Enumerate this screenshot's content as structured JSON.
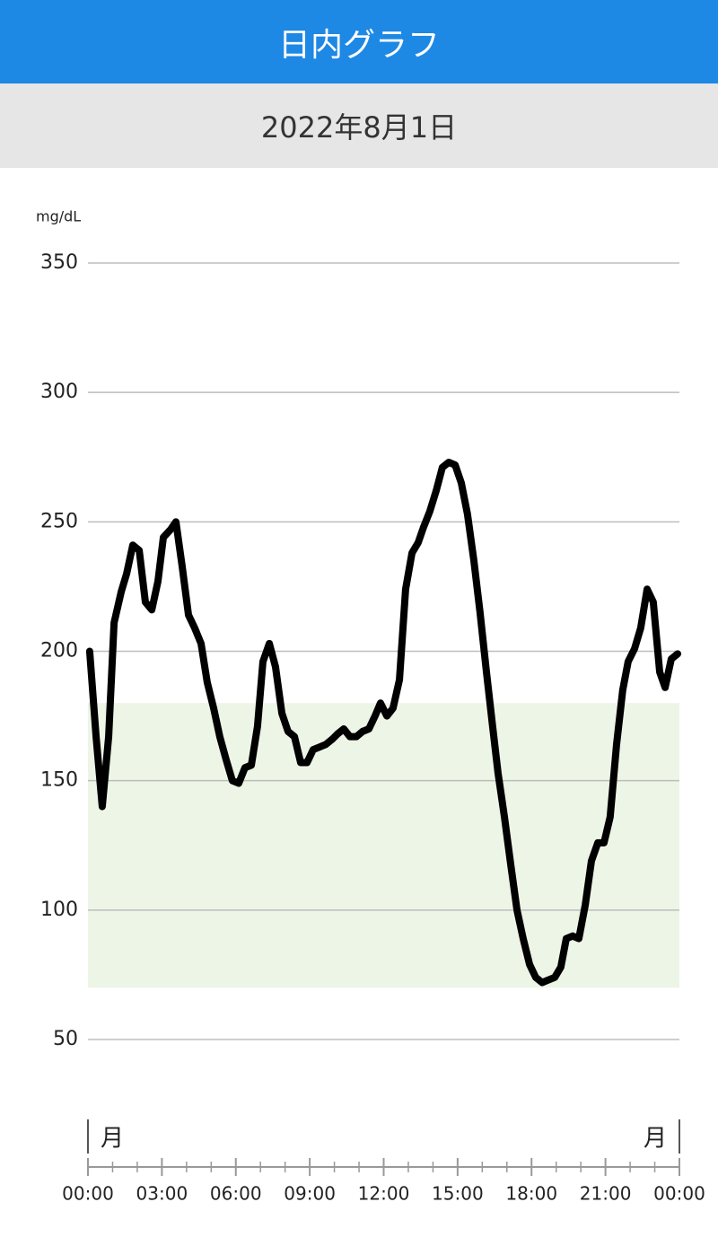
{
  "header": {
    "title": "日内グラフ"
  },
  "date": "2022年8月1日",
  "chart_data": {
    "type": "line",
    "unit_label": "mg/dL",
    "x": [
      0.07,
      0.33,
      0.58,
      0.84,
      1.06,
      1.35,
      1.57,
      1.82,
      2.08,
      2.33,
      2.59,
      2.84,
      3.06,
      3.35,
      3.57,
      3.82,
      4.08,
      4.33,
      4.59,
      4.84,
      5.1,
      5.35,
      5.61,
      5.86,
      6.12,
      6.37,
      6.63,
      6.88,
      7.1,
      7.36,
      7.61,
      7.87,
      8.12,
      8.38,
      8.63,
      8.89,
      9.14,
      9.4,
      9.65,
      9.91,
      10.12,
      10.38,
      10.63,
      10.89,
      11.14,
      11.4,
      11.65,
      11.87,
      12.13,
      12.38,
      12.64,
      12.89,
      13.15,
      13.4,
      13.62,
      13.87,
      14.13,
      14.38,
      14.64,
      14.9,
      15.15,
      15.4,
      15.66,
      15.91,
      16.17,
      16.42,
      16.64,
      16.9,
      17.15,
      17.41,
      17.66,
      17.92,
      18.17,
      18.43,
      18.68,
      18.94,
      19.19,
      19.41,
      19.67,
      19.92,
      20.18,
      20.43,
      20.69,
      20.94,
      21.19,
      21.45,
      21.7,
      21.92,
      22.18,
      22.43,
      22.69,
      22.94,
      23.2,
      23.42,
      23.67,
      23.93
    ],
    "values": [
      200,
      167,
      140,
      167,
      211,
      223,
      230,
      241,
      239,
      219,
      216,
      227,
      244,
      247,
      250,
      233,
      214,
      209,
      203,
      188,
      178,
      167,
      158,
      150,
      149,
      155,
      156,
      171,
      196,
      203,
      194,
      176,
      169,
      167,
      157,
      157,
      162,
      163,
      164,
      166,
      168,
      170,
      167,
      167,
      169,
      170,
      175,
      180,
      175,
      178,
      189,
      224,
      238,
      242,
      248,
      254,
      262,
      271,
      273,
      272,
      265,
      253,
      235,
      215,
      192,
      171,
      153,
      136,
      118,
      100,
      89,
      79,
      74,
      72,
      73,
      74,
      78,
      89,
      90,
      89,
      102,
      119,
      126,
      126,
      136,
      164,
      185,
      196,
      201,
      209,
      224,
      219,
      192,
      186,
      197,
      199
    ],
    "color": "#000000",
    "target_range": [
      70,
      180
    ],
    "target_color": "#edf5e6",
    "xlim": [
      0,
      24
    ],
    "xticks": [
      {
        "value": 0,
        "label": "00:00"
      },
      {
        "value": 3,
        "label": "03:00"
      },
      {
        "value": 6,
        "label": "06:00"
      },
      {
        "value": 9,
        "label": "09:00"
      },
      {
        "value": 12,
        "label": "12:00"
      },
      {
        "value": 15,
        "label": "15:00"
      },
      {
        "value": 18,
        "label": "18:00"
      },
      {
        "value": 21,
        "label": "21:00"
      },
      {
        "value": 24,
        "label": "00:00"
      }
    ],
    "xminorticks": [
      1,
      2,
      4,
      5,
      7,
      8,
      10,
      11,
      13,
      14,
      16,
      17,
      19,
      20,
      22,
      23
    ],
    "ylim": [
      50,
      350
    ],
    "yticks": [
      50,
      100,
      150,
      200,
      250,
      300,
      350
    ],
    "grid": true,
    "day_markers": [
      {
        "x": 0,
        "label": "月"
      },
      {
        "x": 24,
        "label": "月"
      }
    ]
  }
}
